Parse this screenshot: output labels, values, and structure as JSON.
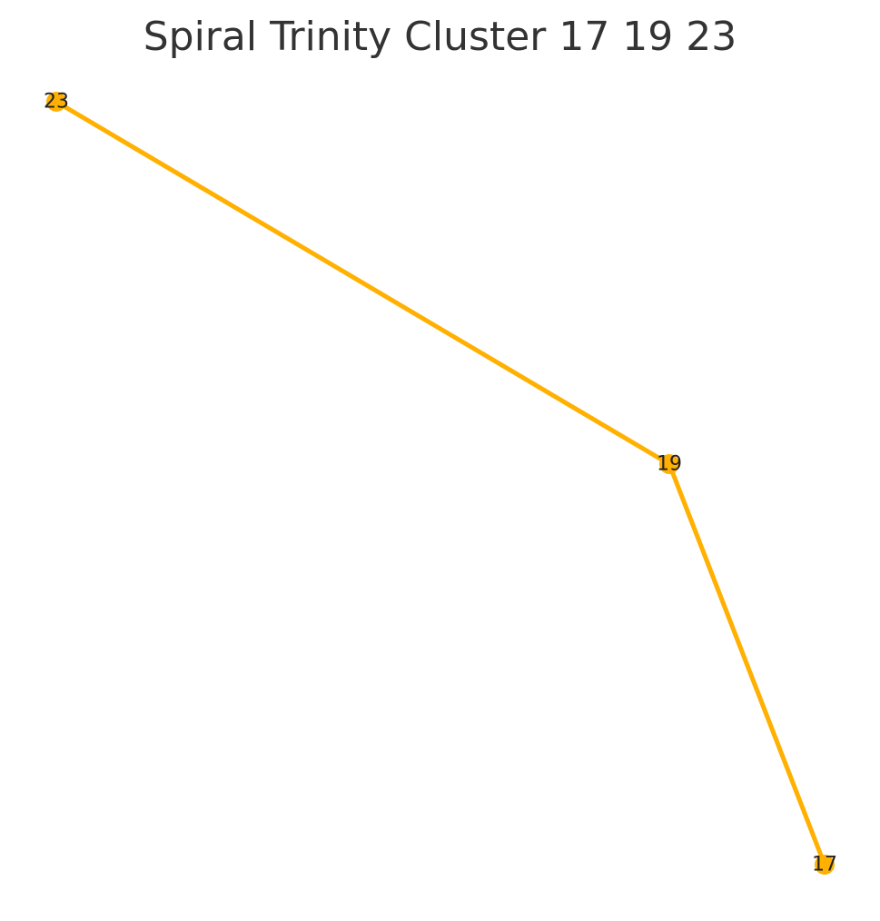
{
  "title": "Spiral Trinity Cluster 17 19 23",
  "colors": {
    "edge": "#FFB000",
    "node": "#FFB000",
    "title": "#333333",
    "label": "#222222",
    "background": "#ffffff"
  },
  "nodes": [
    {
      "id": "23",
      "label": "23"
    },
    {
      "id": "19",
      "label": "19"
    },
    {
      "id": "17",
      "label": "17"
    }
  ],
  "edges": [
    {
      "source": "23",
      "target": "19"
    },
    {
      "source": "19",
      "target": "17"
    }
  ]
}
